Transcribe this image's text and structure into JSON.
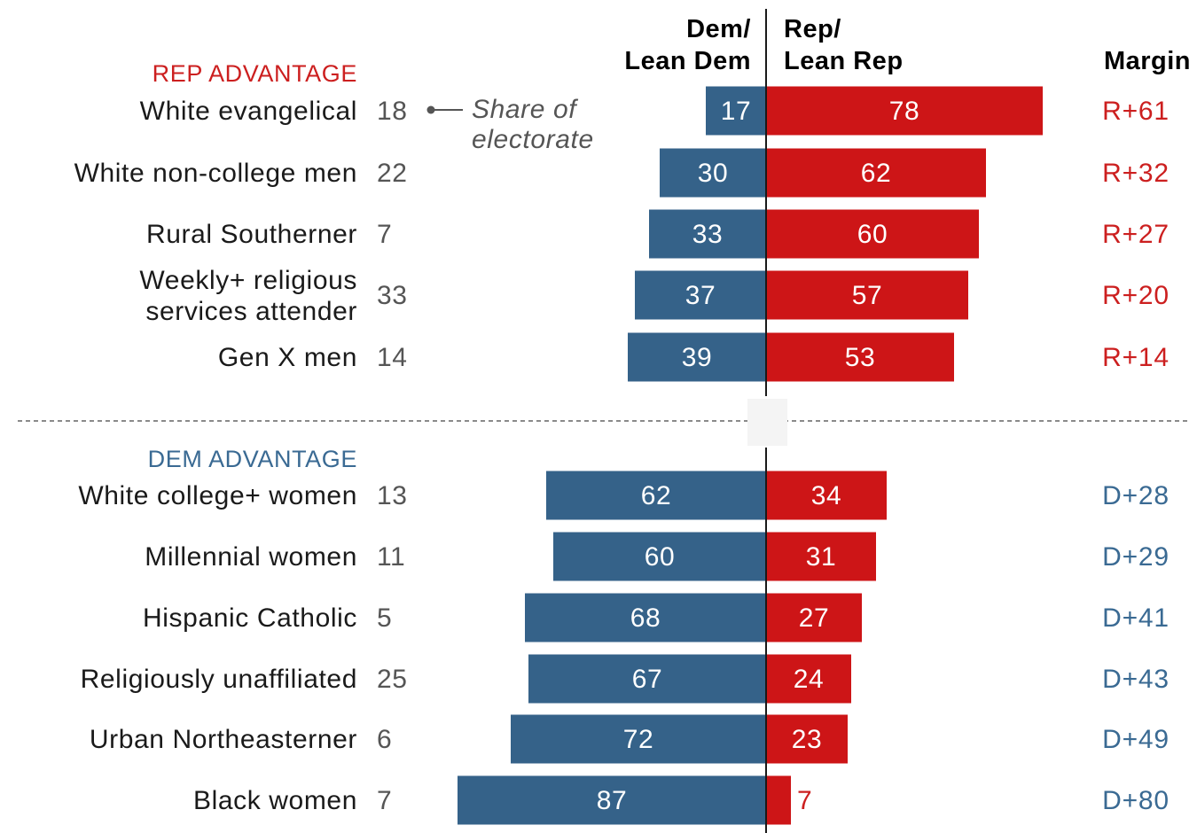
{
  "chart_data": {
    "type": "bar",
    "orientation": "horizontal-diverging",
    "colors": {
      "dem": "#356289",
      "rep": "#cd1517",
      "dem_text": "#3a6a93",
      "rep_text": "#cc1f1f",
      "text": "#1a1a1a",
      "muted": "#555555"
    },
    "headers": {
      "dem": [
        "Dem/",
        "Lean Dem"
      ],
      "rep": [
        "Rep/",
        "Lean Rep"
      ],
      "margin": "Margin"
    },
    "annotation": [
      "Share of",
      "electorate"
    ],
    "sections": [
      {
        "label": "REP ADVANTAGE",
        "side": "rep",
        "rows": [
          {
            "label": [
              "White evangelical"
            ],
            "share": "18",
            "dem": 17,
            "rep": 78,
            "margin": "R+61"
          },
          {
            "label": [
              "White non-college men"
            ],
            "share": "22",
            "dem": 30,
            "rep": 62,
            "margin": "R+32"
          },
          {
            "label": [
              "Rural Southerner"
            ],
            "share": "7",
            "dem": 33,
            "rep": 60,
            "margin": "R+27"
          },
          {
            "label": [
              "Weekly+ religious",
              "services attender"
            ],
            "share": "33",
            "dem": 37,
            "rep": 57,
            "margin": "R+20"
          },
          {
            "label": [
              "Gen X men"
            ],
            "share": "14",
            "dem": 39,
            "rep": 53,
            "margin": "R+14"
          }
        ]
      },
      {
        "label": "DEM ADVANTAGE",
        "side": "dem",
        "rows": [
          {
            "label": [
              "White college+ women"
            ],
            "share": "13",
            "dem": 62,
            "rep": 34,
            "margin": "D+28"
          },
          {
            "label": [
              "Millennial women"
            ],
            "share": "11",
            "dem": 60,
            "rep": 31,
            "margin": "D+29"
          },
          {
            "label": [
              "Hispanic Catholic"
            ],
            "share": "5",
            "dem": 68,
            "rep": 27,
            "margin": "D+41"
          },
          {
            "label": [
              "Religiously unaffiliated"
            ],
            "share": "25",
            "dem": 67,
            "rep": 24,
            "margin": "D+43"
          },
          {
            "label": [
              "Urban Northeasterner"
            ],
            "share": "6",
            "dem": 72,
            "rep": 23,
            "margin": "D+49"
          },
          {
            "label": [
              "Black women"
            ],
            "share": "7",
            "dem": 87,
            "rep": 7,
            "margin": "D+80"
          }
        ]
      }
    ]
  }
}
